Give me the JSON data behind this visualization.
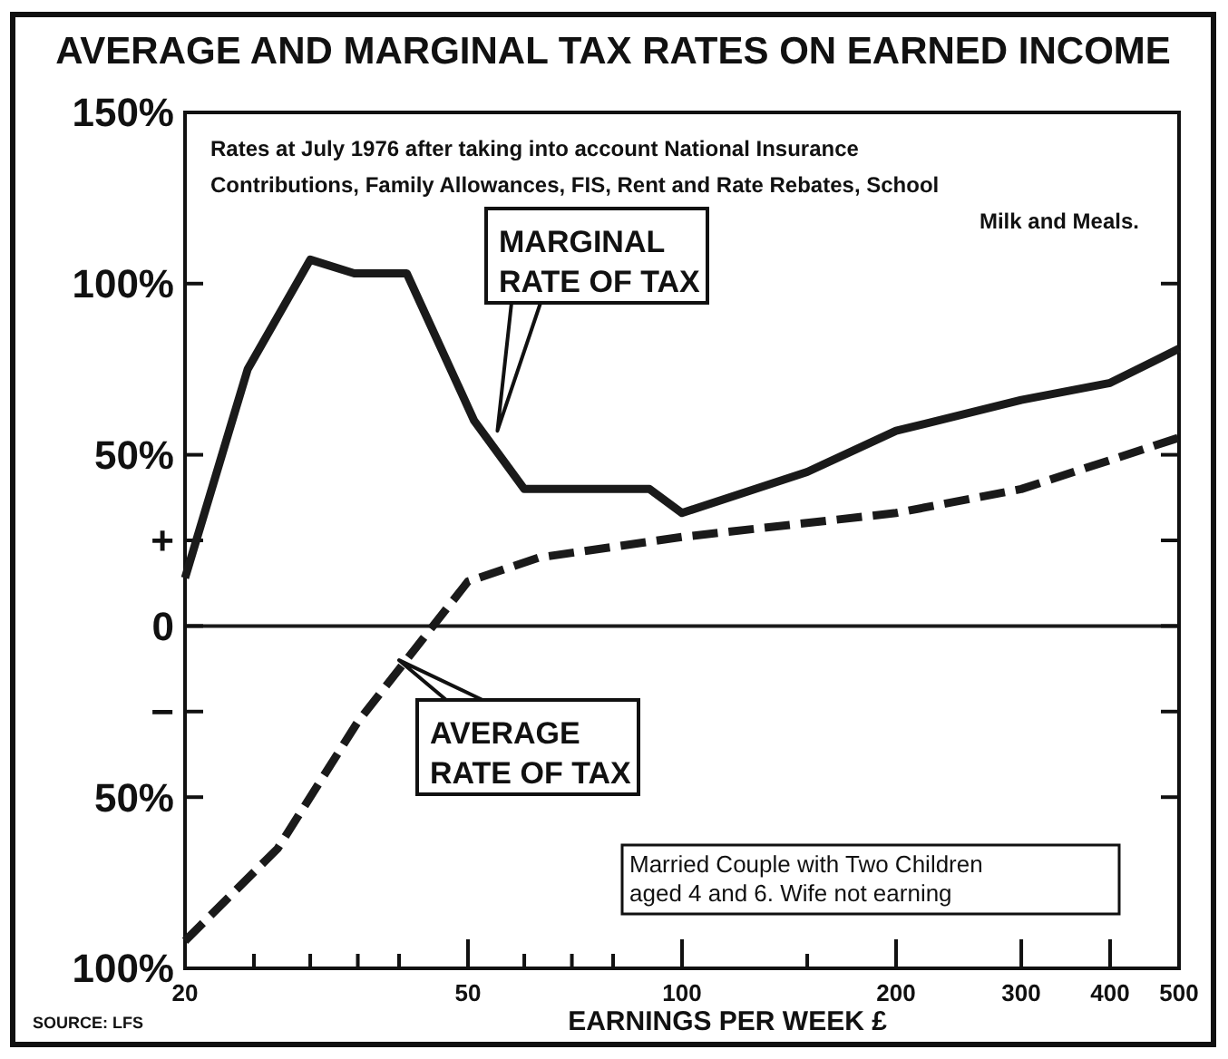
{
  "chart_data": {
    "type": "line",
    "title": "AVERAGE AND MARGINAL TAX RATES ON EARNED INCOME",
    "subtitle": "Rates at July 1976 after taking into account National Insurance Contributions, Family Allowances, FIS, Rent and Rate Rebates, School Milk and Meals.",
    "xlabel": "EARNINGS PER WEEK £",
    "log": "x",
    "grid": false,
    "xlim": [
      20,
      500
    ],
    "xticks": [
      20,
      {
        "value": 25,
        "label": null
      },
      {
        "value": 30,
        "label": null
      },
      {
        "value": 35,
        "label": null
      },
      {
        "value": 40,
        "label": null
      },
      50,
      {
        "value": 60,
        "label": null
      },
      {
        "value": 70,
        "label": null
      },
      {
        "value": 80,
        "label": null
      },
      100,
      {
        "value": 150,
        "label": null
      },
      200,
      300,
      400,
      500
    ],
    "ylim": [
      -100,
      150
    ],
    "yticks": [
      {
        "value": -100,
        "label": "100%"
      },
      {
        "value": -50,
        "label": "50%"
      },
      {
        "value": -25,
        "label": "−"
      },
      0,
      {
        "value": 25,
        "label": "+"
      },
      {
        "value": 50,
        "label": "50%"
      },
      {
        "value": 100,
        "label": "100%"
      },
      {
        "value": 150,
        "label": "150%"
      }
    ],
    "series": [
      {
        "color": "#1a1a1a",
        "line_style": "solid",
        "x": [
          20,
          24.5,
          30,
          34.6,
          41,
          51,
          60,
          90,
          100,
          150,
          200,
          300,
          400,
          500
        ],
        "values": [
          14,
          75,
          107,
          103,
          103,
          60,
          40,
          40,
          33,
          45,
          57,
          66,
          71,
          81
        ]
      },
      {
        "color": "#1a1a1a",
        "line_style": "dashed",
        "x": [
          20,
          27,
          35,
          50,
          63,
          100,
          200,
          300,
          500
        ],
        "values": [
          -92,
          -65,
          -28,
          13,
          20,
          26,
          33,
          40,
          55
        ]
      }
    ],
    "ref_lines": [
      {
        "axis": "y",
        "value": 0,
        "color": "#1a1a1a",
        "line_style": "solid"
      }
    ],
    "annotations": [
      {
        "text": "MARGINAL RATE OF TAX",
        "x": 55,
        "y": 57
      },
      {
        "text": "AVERAGE RATE OF TAX",
        "x": 40,
        "y": -10
      },
      "Married Couple with Two Children aged 4 and 6. Wife not earning",
      "SOURCE: LFS"
    ]
  }
}
